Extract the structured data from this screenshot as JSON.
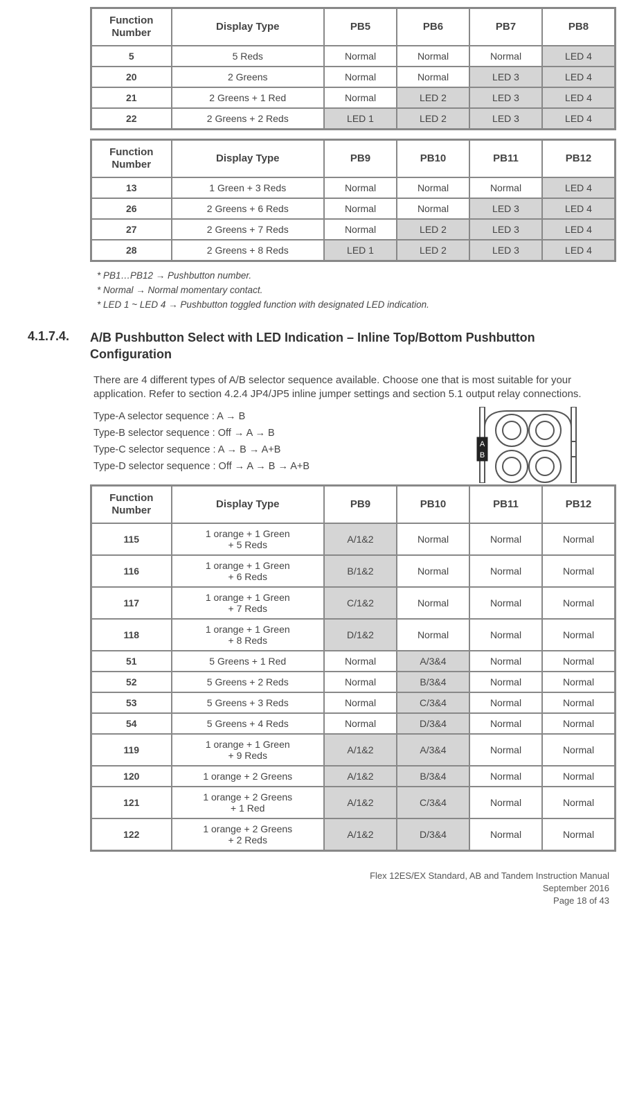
{
  "table1": {
    "headers": [
      "Function\nNumber",
      "Display Type",
      "PB5",
      "PB6",
      "PB7",
      "PB8"
    ],
    "rows": [
      {
        "fn": "5",
        "dt": "5 Reds",
        "cells": [
          "Normal",
          "Normal",
          "Normal",
          "LED 4"
        ],
        "shaded": [
          false,
          false,
          false,
          true
        ]
      },
      {
        "fn": "20",
        "dt": "2 Greens",
        "cells": [
          "Normal",
          "Normal",
          "LED 3",
          "LED 4"
        ],
        "shaded": [
          false,
          false,
          true,
          true
        ]
      },
      {
        "fn": "21",
        "dt": "2 Greens + 1 Red",
        "cells": [
          "Normal",
          "LED 2",
          "LED 3",
          "LED 4"
        ],
        "shaded": [
          false,
          true,
          true,
          true
        ]
      },
      {
        "fn": "22",
        "dt": "2 Greens + 2 Reds",
        "cells": [
          "LED 1",
          "LED 2",
          "LED 3",
          "LED 4"
        ],
        "shaded": [
          true,
          true,
          true,
          true
        ]
      }
    ]
  },
  "table2": {
    "headers": [
      "Function\nNumber",
      "Display Type",
      "PB9",
      "PB10",
      "PB11",
      "PB12"
    ],
    "rows": [
      {
        "fn": "13",
        "dt": "1 Green + 3 Reds",
        "cells": [
          "Normal",
          "Normal",
          "Normal",
          "LED 4"
        ],
        "shaded": [
          false,
          false,
          false,
          true
        ]
      },
      {
        "fn": "26",
        "dt": "2 Greens + 6 Reds",
        "cells": [
          "Normal",
          "Normal",
          "LED 3",
          "LED 4"
        ],
        "shaded": [
          false,
          false,
          true,
          true
        ]
      },
      {
        "fn": "27",
        "dt": "2 Greens + 7 Reds",
        "cells": [
          "Normal",
          "LED 2",
          "LED 3",
          "LED 4"
        ],
        "shaded": [
          false,
          true,
          true,
          true
        ]
      },
      {
        "fn": "28",
        "dt": "2 Greens + 8 Reds",
        "cells": [
          "LED 1",
          "LED 2",
          "LED 3",
          "LED 4"
        ],
        "shaded": [
          true,
          true,
          true,
          true
        ]
      }
    ]
  },
  "footnotes": [
    "* PB1…PB12 → Pushbutton number.",
    "* Normal → Normal momentary contact.",
    "* LED 1 ~ LED 4 → Pushbutton toggled function with designated LED indication."
  ],
  "section": {
    "number": "4.1.7.4.",
    "title": "A/B Pushbutton Select with LED Indication – Inline Top/Bottom Pushbutton Configuration"
  },
  "paragraph": "There are 4 different types of A/B selector sequence available.  Choose one that is most suitable for your application.  Refer to section 4.2.4 JP4/JP5 inline jumper settings and section 5.1 output relay connections.",
  "sequences": [
    "Type-A selector sequence :  A → B",
    "Type-B selector sequence : Off → A → B",
    "Type-C selector sequence :  A → B → A+B",
    "Type-D selector sequence : Off → A → B → A+B"
  ],
  "illus_labels": {
    "a": "A",
    "b": "B"
  },
  "table3": {
    "headers": [
      "Function\nNumber",
      "Display Type",
      "PB9",
      "PB10",
      "PB11",
      "PB12"
    ],
    "rows": [
      {
        "fn": "115",
        "dt": "1 orange + 1 Green\n+ 5 Reds",
        "cells": [
          "A/1&2",
          "Normal",
          "Normal",
          "Normal"
        ],
        "shaded": [
          true,
          false,
          false,
          false
        ]
      },
      {
        "fn": "116",
        "dt": "1 orange + 1 Green\n+ 6 Reds",
        "cells": [
          "B/1&2",
          "Normal",
          "Normal",
          "Normal"
        ],
        "shaded": [
          true,
          false,
          false,
          false
        ]
      },
      {
        "fn": "117",
        "dt": "1 orange + 1 Green\n+ 7 Reds",
        "cells": [
          "C/1&2",
          "Normal",
          "Normal",
          "Normal"
        ],
        "shaded": [
          true,
          false,
          false,
          false
        ]
      },
      {
        "fn": "118",
        "dt": "1 orange + 1 Green\n+ 8 Reds",
        "cells": [
          "D/1&2",
          "Normal",
          "Normal",
          "Normal"
        ],
        "shaded": [
          true,
          false,
          false,
          false
        ]
      },
      {
        "fn": "51",
        "dt": "5 Greens + 1 Red",
        "cells": [
          "Normal",
          "A/3&4",
          "Normal",
          "Normal"
        ],
        "shaded": [
          false,
          true,
          false,
          false
        ]
      },
      {
        "fn": "52",
        "dt": "5 Greens + 2 Reds",
        "cells": [
          "Normal",
          "B/3&4",
          "Normal",
          "Normal"
        ],
        "shaded": [
          false,
          true,
          false,
          false
        ]
      },
      {
        "fn": "53",
        "dt": "5 Greens + 3 Reds",
        "cells": [
          "Normal",
          "C/3&4",
          "Normal",
          "Normal"
        ],
        "shaded": [
          false,
          true,
          false,
          false
        ]
      },
      {
        "fn": "54",
        "dt": "5 Greens + 4 Reds",
        "cells": [
          "Normal",
          "D/3&4",
          "Normal",
          "Normal"
        ],
        "shaded": [
          false,
          true,
          false,
          false
        ]
      },
      {
        "fn": "119",
        "dt": "1 orange + 1 Green\n+ 9 Reds",
        "cells": [
          "A/1&2",
          "A/3&4",
          "Normal",
          "Normal"
        ],
        "shaded": [
          true,
          true,
          false,
          false
        ]
      },
      {
        "fn": "120",
        "dt": "1 orange + 2 Greens",
        "cells": [
          "A/1&2",
          "B/3&4",
          "Normal",
          "Normal"
        ],
        "shaded": [
          true,
          true,
          false,
          false
        ]
      },
      {
        "fn": "121",
        "dt": "1 orange + 2 Greens\n+ 1 Red",
        "cells": [
          "A/1&2",
          "C/3&4",
          "Normal",
          "Normal"
        ],
        "shaded": [
          true,
          true,
          false,
          false
        ]
      },
      {
        "fn": "122",
        "dt": "1 orange + 2 Greens\n+ 2 Reds",
        "cells": [
          "A/1&2",
          "D/3&4",
          "Normal",
          "Normal"
        ],
        "shaded": [
          true,
          true,
          false,
          false
        ]
      }
    ]
  },
  "footer": {
    "line1": "Flex 12ES/EX Standard, AB and Tandem Instruction Manual",
    "line2": "September 2016",
    "line3": "Page 18 of 43"
  },
  "colors": {
    "border": "#888888",
    "shaded_bg": "#d5d5d5",
    "text": "#444444"
  }
}
